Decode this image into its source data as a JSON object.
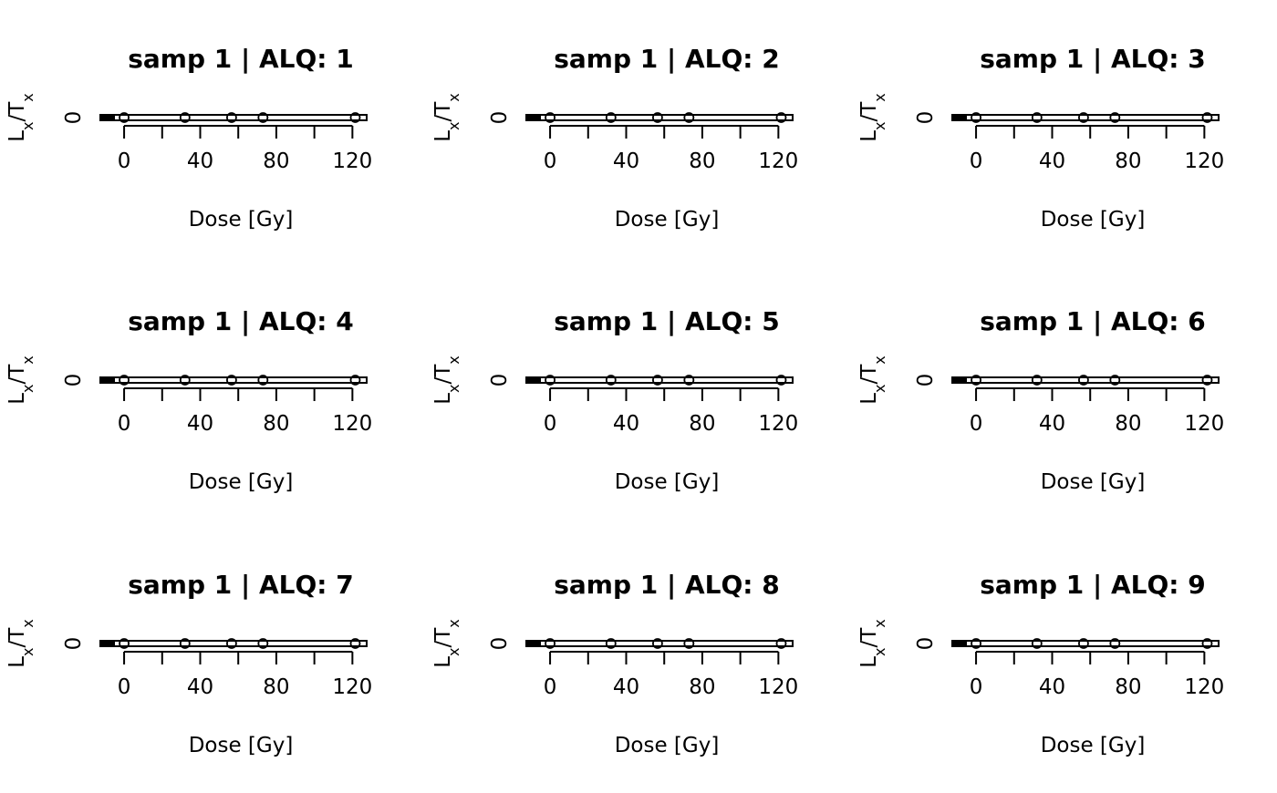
{
  "chart_data": {
    "type": "scatter",
    "layout": "3x3 grid of panels",
    "xlabel": "Dose [Gy]",
    "ylabel_main": "L",
    "ylabel_sub1": "x",
    "ylabel_mid": "/T",
    "ylabel_sub2": "x",
    "x_ticks": [
      0,
      40,
      80,
      120
    ],
    "x_minor_ticks": [
      20,
      60,
      100
    ],
    "xlim": [
      -12.5,
      127.5
    ],
    "y_ticks": [
      0
    ],
    "ylim": [
      -0.05,
      0.05
    ],
    "grid": false,
    "legend": false,
    "point_shape": "open circle",
    "panels": [
      {
        "title": "samp 1 | ALQ: 1",
        "x": [
          0,
          32,
          56.5,
          73,
          121.5
        ],
        "y": [
          0,
          0,
          0,
          0,
          0
        ]
      },
      {
        "title": "samp 1 | ALQ: 2",
        "x": [
          0,
          32,
          56.5,
          73,
          121.5
        ],
        "y": [
          0,
          0,
          0,
          0,
          0
        ]
      },
      {
        "title": "samp 1 | ALQ: 3",
        "x": [
          0,
          32,
          56.5,
          73,
          121.5
        ],
        "y": [
          0,
          0,
          0,
          0,
          0
        ]
      },
      {
        "title": "samp 1 | ALQ: 4",
        "x": [
          0,
          32,
          56.5,
          73,
          121.5
        ],
        "y": [
          0,
          0,
          0,
          0,
          0
        ]
      },
      {
        "title": "samp 1 | ALQ: 5",
        "x": [
          0,
          32,
          56.5,
          73,
          121.5
        ],
        "y": [
          0,
          0,
          0,
          0,
          0
        ]
      },
      {
        "title": "samp 1 | ALQ: 6",
        "x": [
          0,
          32,
          56.5,
          73,
          121.5
        ],
        "y": [
          0,
          0,
          0,
          0,
          0
        ]
      },
      {
        "title": "samp 1 | ALQ: 7",
        "x": [
          0,
          32,
          56.5,
          73,
          121.5
        ],
        "y": [
          0,
          0,
          0,
          0,
          0
        ]
      },
      {
        "title": "samp 1 | ALQ: 8",
        "x": [
          0,
          32,
          56.5,
          73,
          121.5
        ],
        "y": [
          0,
          0,
          0,
          0,
          0
        ]
      },
      {
        "title": "samp 1 | ALQ: 9",
        "x": [
          0,
          32,
          56.5,
          73,
          121.5
        ],
        "y": [
          0,
          0,
          0,
          0,
          0
        ]
      }
    ]
  }
}
